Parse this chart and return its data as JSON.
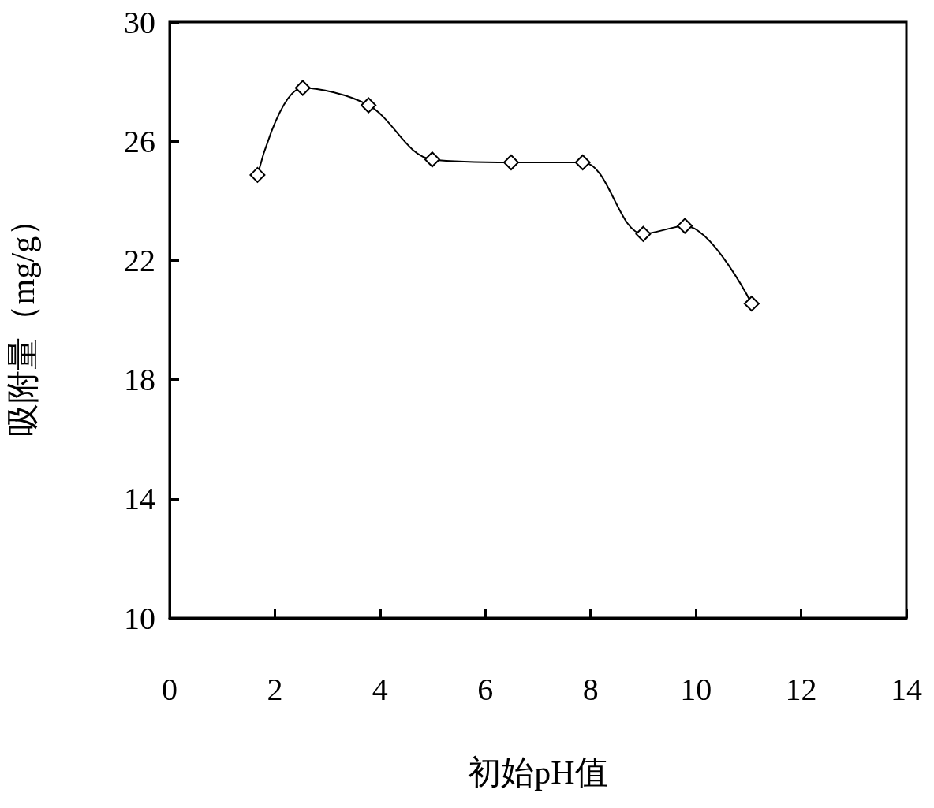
{
  "chart_data": {
    "type": "line",
    "xlabel": "初始pH值",
    "ylabel": "吸附量（mg/g）",
    "x": [
      1.67,
      2.53,
      3.78,
      4.99,
      6.49,
      7.85,
      9.0,
      9.79,
      11.06
    ],
    "series": [
      {
        "color": "#000000",
        "values": [
          24.87,
          27.79,
          27.21,
          25.39,
          25.29,
          25.29,
          22.89,
          23.16,
          20.55
        ]
      }
    ],
    "xlim": [
      0,
      14
    ],
    "xticks": [
      0,
      2,
      4,
      6,
      8,
      10,
      12,
      14
    ],
    "ylim": [
      10,
      30
    ],
    "yticks": [
      10,
      14,
      18,
      22,
      26,
      30
    ],
    "grid": false,
    "marker": "diamond",
    "line_style": "solid"
  }
}
